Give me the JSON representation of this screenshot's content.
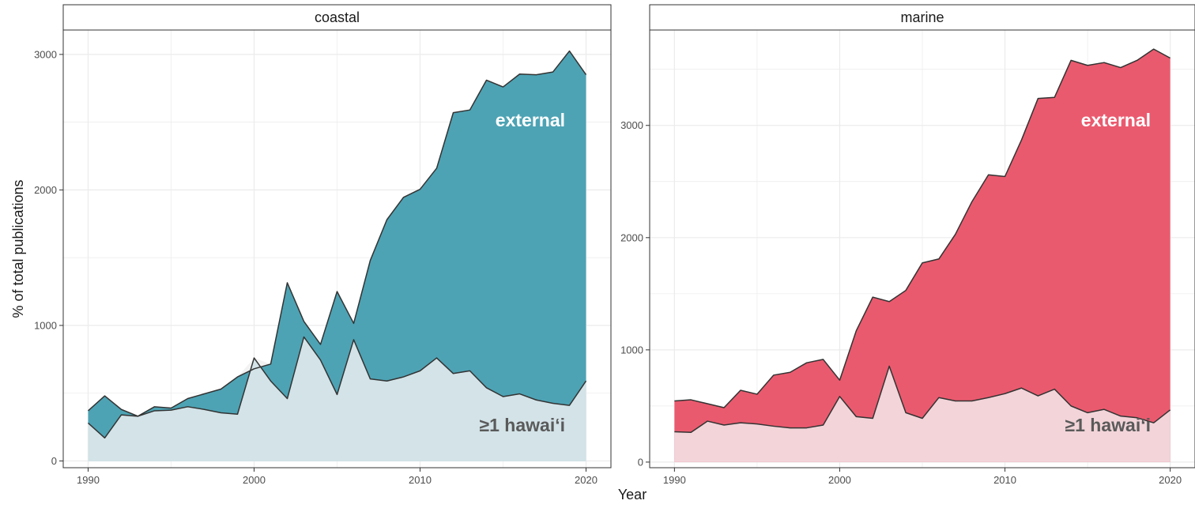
{
  "axis": {
    "xlabel": "Year",
    "ylabel": "% of total publications"
  },
  "labels": {
    "external": "external",
    "hawaii": "≥1 hawai‘i"
  },
  "colors": {
    "coastal_external": "#4DA3B4",
    "coastal_hawaii": "#D3E3E8",
    "coastal_early": "#F2F2F2",
    "marine_external": "#EA5A6E",
    "marine_hawaii": "#F2D4D9",
    "line": "#333333",
    "grid": "#EBEBEB",
    "border": "#333333",
    "strip_bg": "#FFFFFF"
  },
  "chart_data": [
    {
      "type": "area",
      "panel": "coastal",
      "xlabel": "Year",
      "ylabel": "% of total publications",
      "xlim": [
        1988.5,
        2021.5
      ],
      "ylim": [
        -50,
        3180
      ],
      "x_ticks": [
        1990,
        2000,
        2010,
        2020
      ],
      "y_ticks": [
        0,
        1000,
        2000,
        3000
      ],
      "grid": true,
      "x": [
        1990,
        1991,
        1992,
        1993,
        1994,
        1995,
        1996,
        1997,
        1998,
        1999,
        2000,
        2001,
        2002,
        2003,
        2004,
        2005,
        2006,
        2007,
        2008,
        2009,
        2010,
        2011,
        2012,
        2013,
        2014,
        2015,
        2016,
        2017,
        2018,
        2019,
        2020
      ],
      "series": [
        {
          "name": "external",
          "values": [
            370,
            480,
            380,
            330,
            400,
            390,
            460,
            495,
            530,
            620,
            680,
            715,
            1315,
            1030,
            860,
            1250,
            1015,
            1480,
            1780,
            1945,
            2005,
            2160,
            2570,
            2590,
            2810,
            2760,
            2855,
            2850,
            2870,
            3025,
            2850
          ]
        },
        {
          "name": "≥1 hawai‘i",
          "values": [
            280,
            170,
            340,
            330,
            370,
            375,
            400,
            380,
            355,
            345,
            760,
            590,
            460,
            915,
            745,
            490,
            895,
            605,
            590,
            620,
            665,
            760,
            645,
            665,
            540,
            475,
            495,
            450,
            425,
            410,
            590
          ]
        }
      ]
    },
    {
      "type": "area",
      "panel": "marine",
      "xlabel": "Year",
      "ylabel": "% of total publications",
      "xlim": [
        1988.5,
        2021.5
      ],
      "ylim": [
        -50,
        3850
      ],
      "x_ticks": [
        1990,
        2000,
        2010,
        2020
      ],
      "y_ticks": [
        0,
        1000,
        2000,
        3000
      ],
      "grid": true,
      "x": [
        1990,
        1991,
        1992,
        1993,
        1994,
        1995,
        1996,
        1997,
        1998,
        1999,
        2000,
        2001,
        2002,
        2003,
        2004,
        2005,
        2006,
        2007,
        2008,
        2009,
        2010,
        2011,
        2012,
        2013,
        2014,
        2015,
        2016,
        2017,
        2018,
        2019,
        2020
      ],
      "series": [
        {
          "name": "external",
          "values": [
            545,
            555,
            520,
            485,
            640,
            605,
            775,
            800,
            885,
            915,
            730,
            1170,
            1470,
            1430,
            1530,
            1775,
            1810,
            2030,
            2320,
            2560,
            2545,
            2870,
            3240,
            3250,
            3580,
            3535,
            3560,
            3515,
            3580,
            3680,
            3600
          ]
        },
        {
          "name": "≥1 hawai‘i",
          "values": [
            270,
            265,
            365,
            330,
            350,
            340,
            320,
            305,
            305,
            330,
            585,
            405,
            390,
            855,
            440,
            390,
            575,
            545,
            545,
            575,
            610,
            660,
            590,
            650,
            500,
            440,
            470,
            410,
            395,
            350,
            465
          ]
        }
      ]
    }
  ]
}
